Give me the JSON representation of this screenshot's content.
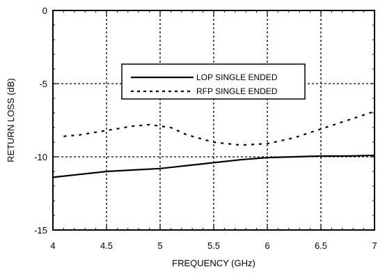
{
  "chart_data": {
    "type": "line",
    "xlabel": "FREQUENCY (GHz)",
    "ylabel": "RETURN LOSS (dB)",
    "xlim": [
      4,
      7
    ],
    "ylim": [
      -15,
      0
    ],
    "x_ticks": [
      4,
      4.5,
      5,
      5.5,
      6,
      6.5,
      7
    ],
    "x_tick_labels": [
      "4",
      "4.5",
      "5",
      "5.5",
      "6",
      "6.5",
      "7"
    ],
    "y_ticks": [
      0,
      -5,
      -10,
      -15
    ],
    "y_tick_labels": [
      "0",
      "-5",
      "-10",
      "-15"
    ],
    "grid": true,
    "grid_style": "dotted",
    "legend_position": "upper-center",
    "series": [
      {
        "name": "LOP SINGLE ENDED",
        "line_style": "solid",
        "x": [
          4.0,
          4.25,
          4.5,
          4.75,
          5.0,
          5.25,
          5.5,
          5.75,
          6.0,
          6.25,
          6.5,
          6.75,
          7.0
        ],
        "y": [
          -11.4,
          -11.2,
          -11.0,
          -10.9,
          -10.8,
          -10.6,
          -10.4,
          -10.2,
          -10.05,
          -10.0,
          -9.95,
          -9.95,
          -9.9
        ]
      },
      {
        "name": "RFP SINGLE ENDED",
        "line_style": "dotted",
        "x": [
          4.1,
          4.25,
          4.5,
          4.75,
          4.9,
          5.1,
          5.25,
          5.5,
          5.75,
          6.0,
          6.25,
          6.5,
          6.75,
          7.0
        ],
        "y": [
          -8.6,
          -8.5,
          -8.2,
          -7.9,
          -7.8,
          -8.0,
          -8.5,
          -9.0,
          -9.2,
          -9.1,
          -8.7,
          -8.1,
          -7.5,
          -6.9
        ]
      }
    ]
  }
}
